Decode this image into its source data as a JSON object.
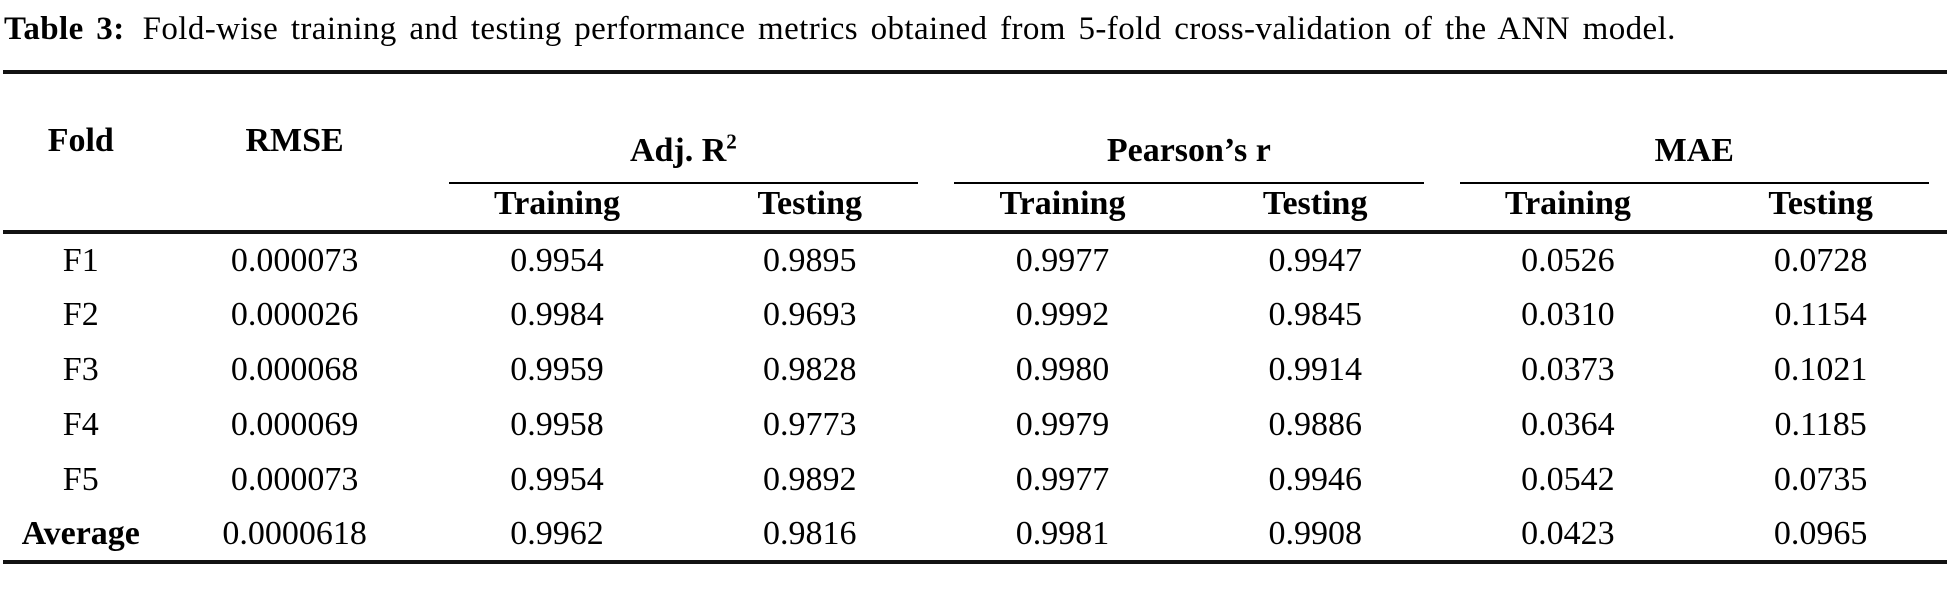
{
  "caption": {
    "label": "Table 3:",
    "text": "Fold-wise training and testing performance metrics obtained from 5-fold cross-validation of the ANN model."
  },
  "table": {
    "col_fold": "Fold",
    "col_rmse": "RMSE",
    "groups": {
      "adj_r2_base": "Adj. R",
      "adj_r2_sup": "2",
      "pearson": "Pearson’s r",
      "mae": "MAE"
    },
    "sub": {
      "training": "Training",
      "testing": "Testing"
    },
    "rows": [
      {
        "cells": [
          "F1",
          "0.000073",
          "0.9954",
          "0.9895",
          "0.9977",
          "0.9947",
          "0.0526",
          "0.0728"
        ]
      },
      {
        "cells": [
          "F2",
          "0.000026",
          "0.9984",
          "0.9693",
          "0.9992",
          "0.9845",
          "0.0310",
          "0.1154"
        ]
      },
      {
        "cells": [
          "F3",
          "0.000068",
          "0.9959",
          "0.9828",
          "0.9980",
          "0.9914",
          "0.0373",
          "0.1021"
        ]
      },
      {
        "cells": [
          "F4",
          "0.000069",
          "0.9958",
          "0.9773",
          "0.9979",
          "0.9886",
          "0.0364",
          "0.1185"
        ]
      },
      {
        "cells": [
          "F5",
          "0.000073",
          "0.9954",
          "0.9892",
          "0.9977",
          "0.9946",
          "0.0542",
          "0.0735"
        ]
      },
      {
        "cells": [
          "Average",
          "0.0000618",
          "0.9962",
          "0.9816",
          "0.9981",
          "0.9908",
          "0.0423",
          "0.0965"
        ]
      }
    ]
  }
}
